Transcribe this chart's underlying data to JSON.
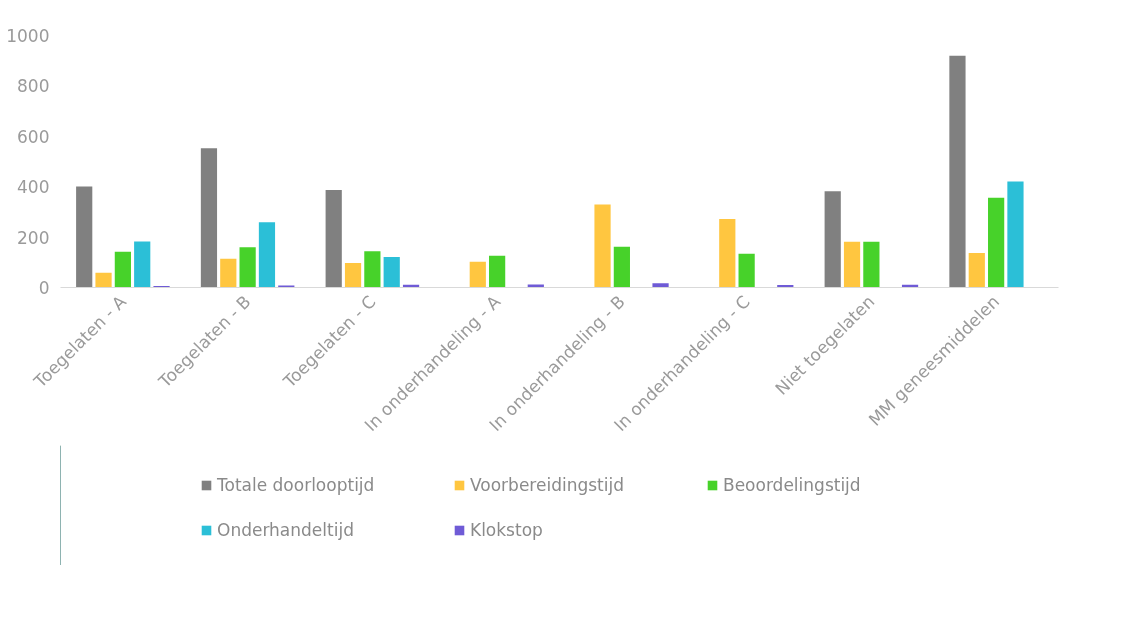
{
  "chart_data": {
    "type": "bar",
    "categories": [
      "Toegelaten - A",
      "Toegelaten - B",
      "Toegelaten - C",
      "In onderhandeling - A",
      "In onderhandeling - B",
      "In onderhandeling - C",
      "Niet toegelaten",
      "MM geneesmiddelen"
    ],
    "series": [
      {
        "name": "Totale doorlooptijd",
        "color": "#808080",
        "values": [
          401,
          553,
          387,
          null,
          null,
          null,
          382,
          920
        ]
      },
      {
        "name": "Voorbereidingstijd",
        "color": "#ffc640",
        "values": [
          59,
          114,
          97,
          102,
          329,
          272,
          182,
          137
        ]
      },
      {
        "name": "Beoordelingstijd",
        "color": "#47d22a",
        "values": [
          142,
          160,
          144,
          126,
          162,
          134,
          182,
          356
        ]
      },
      {
        "name": "Onderhandeltijd",
        "color": "#2bbfd7",
        "values": [
          183,
          259,
          121,
          null,
          null,
          null,
          null,
          421
        ]
      },
      {
        "name": "Klokstop",
        "color": "#6f5bd6",
        "values": [
          6,
          8,
          11,
          12,
          17,
          10,
          11,
          null
        ]
      }
    ],
    "ylim": [
      0,
      1000
    ],
    "yticks": [
      0,
      200,
      400,
      600,
      800,
      1000
    ],
    "grid": false,
    "legend": "bottom"
  }
}
